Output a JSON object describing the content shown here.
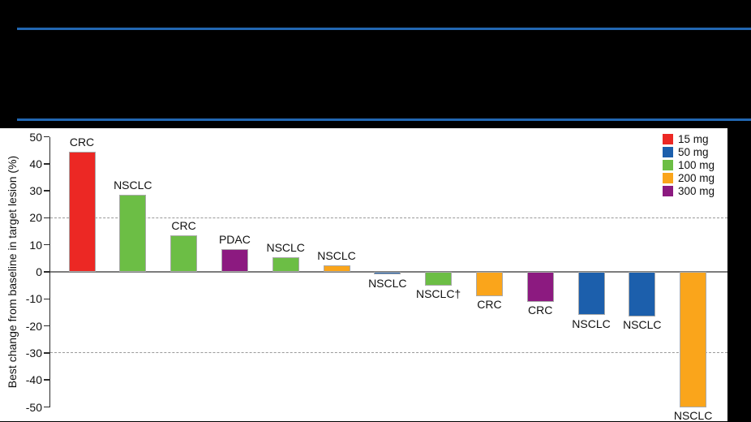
{
  "figure": {
    "background": "#000000",
    "header_rule_color": "#2267B2",
    "panel_background": "#FFFFFF"
  },
  "chart_data": {
    "type": "bar",
    "subtype": "waterfall",
    "title": "",
    "xlabel": "",
    "ylabel": "Best change from baseline in target lesion (%)",
    "ylim": [
      -50,
      50
    ],
    "yticks": [
      50,
      40,
      30,
      20,
      10,
      0,
      -10,
      -20,
      -30,
      -40,
      -50
    ],
    "grid": false,
    "reference_lines": [
      20,
      -30
    ],
    "legend_position": "top-right",
    "legend_entries": [
      "15 mg",
      "50 mg",
      "100 mg",
      "200 mg",
      "300 mg"
    ],
    "dose_colors": {
      "15 mg": "#EC2824",
      "50 mg": "#1C5FAC",
      "100 mg": "#6CBE45",
      "200 mg": "#FAA51B",
      "300 mg": "#8C1A80"
    },
    "bars": [
      {
        "label": "CRC",
        "dose": "15 mg",
        "value": 44.5
      },
      {
        "label": "NSCLC",
        "dose": "100 mg",
        "value": 28.5
      },
      {
        "label": "CRC",
        "dose": "100 mg",
        "value": 13.5
      },
      {
        "label": "PDAC",
        "dose": "300 mg",
        "value": 8.5
      },
      {
        "label": "NSCLC",
        "dose": "100 mg",
        "value": 5.5
      },
      {
        "label": "NSCLC",
        "dose": "200 mg",
        "value": 2.5
      },
      {
        "label": "NSCLC",
        "dose": "50 mg",
        "value": -1
      },
      {
        "label": "NSCLC†",
        "dose": "100 mg",
        "value": -5
      },
      {
        "label": "CRC",
        "dose": "200 mg",
        "value": -9
      },
      {
        "label": "CRC",
        "dose": "300 mg",
        "value": -11
      },
      {
        "label": "NSCLC",
        "dose": "50 mg",
        "value": -16
      },
      {
        "label": "NSCLC",
        "dose": "50 mg",
        "value": -16.5
      },
      {
        "label": "NSCLC",
        "dose": "200 mg",
        "value": -50
      }
    ]
  }
}
